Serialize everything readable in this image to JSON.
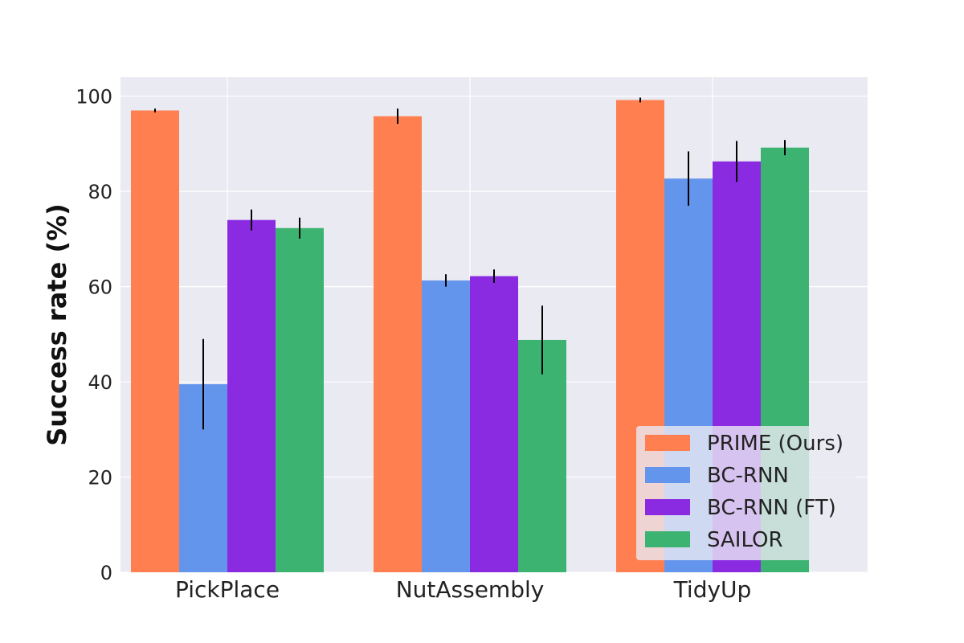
{
  "chart_data": {
    "type": "bar",
    "title": "",
    "xlabel": "",
    "ylabel": "Success rate (%)",
    "ylim": [
      0,
      104
    ],
    "yticks": [
      0,
      20,
      40,
      60,
      80,
      100
    ],
    "grid": true,
    "legend_position": "lower-right",
    "categories": [
      "PickPlace",
      "NutAssembly",
      "TidyUp"
    ],
    "series": [
      {
        "name": "PRIME (Ours)",
        "color": "#FF7F50",
        "values": [
          97,
          95.8,
          99.2
        ],
        "errors": [
          0.4,
          1.6,
          0.5
        ]
      },
      {
        "name": "BC-RNN",
        "color": "#6495ED",
        "values": [
          39.5,
          61.3,
          82.7
        ],
        "errors": [
          9.5,
          1.3,
          5.7
        ]
      },
      {
        "name": "BC-RNN (FT)",
        "color": "#8A2BE2",
        "values": [
          74,
          62.2,
          86.3
        ],
        "errors": [
          2.2,
          1.4,
          4.3
        ]
      },
      {
        "name": "SAILOR",
        "color": "#3CB371",
        "values": [
          72.3,
          48.8,
          89.2
        ],
        "errors": [
          2.2,
          7.2,
          1.6
        ]
      }
    ]
  }
}
